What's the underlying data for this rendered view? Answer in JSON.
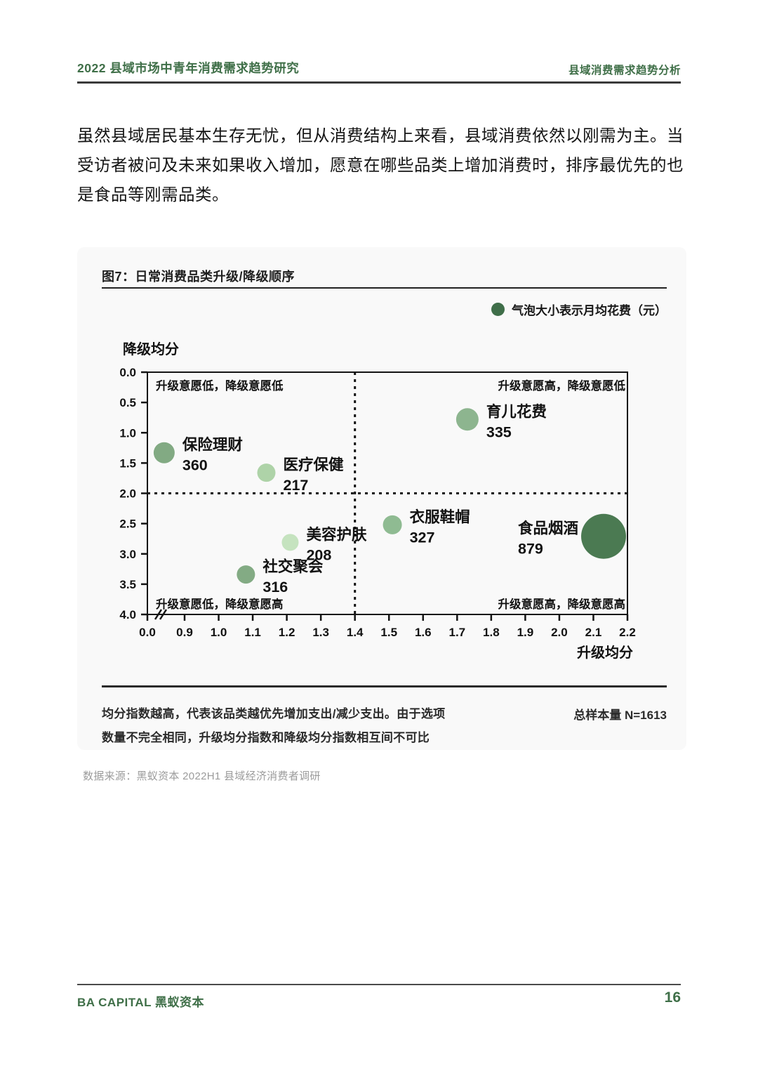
{
  "header": {
    "left": "2022 县域市场中青年消费需求趋势研究",
    "right": "县域消费需求趋势分析"
  },
  "paragraph": "虽然县域居民基本生存无忧，但从消费结构上来看，县域消费依然以刚需为主。当受访者被问及未来如果收入增加，愿意在哪些品类上增加消费时，排序最优先的也是食品等刚需品类。",
  "figure": {
    "title": "图7：日常消费品类升级/降级顺序",
    "legend": "气泡大小表示月均花费（元）",
    "note_lines": [
      "均分指数越高，代表该品类越优先增加支出/减少支出。由于选项",
      "数量不完全相同，升级均分指数和降级均分指数相互间不可比"
    ],
    "sample": "总样本量 N=1613"
  },
  "source": "数据来源：黑蚁资本 2022H1 县域经济消费者调研",
  "footer": {
    "brand": "BA CAPITAL 黑蚁资本",
    "page_number": "16"
  },
  "colors": {
    "accent_green": "#3f6f48",
    "legend_dot": "#3f6e49",
    "axis": "#141414",
    "card_bg": "#f9f9f9"
  },
  "chart_data": {
    "type": "bubble",
    "title": "图7：日常消费品类升级/降级顺序",
    "x_label": "升级均分",
    "y_label": "降级均分",
    "x_ticks": [
      "0.0",
      "0.9",
      "1.0",
      "1.1",
      "1.2",
      "1.3",
      "1.4",
      "1.5",
      "1.6",
      "1.7",
      "1.8",
      "1.9",
      "2.0",
      "2.1",
      "2.2"
    ],
    "y_ticks": [
      "0.0",
      "0.5",
      "1.0",
      "1.5",
      "2.0",
      "2.5",
      "3.0",
      "3.5",
      "4.0"
    ],
    "xlim": [
      0.9,
      2.2
    ],
    "ylim": [
      0,
      4
    ],
    "y_axis_inverted": true,
    "x_axis_break_after": "0.0",
    "grid": false,
    "reference_lines": {
      "x": 1.4,
      "y": 2.0
    },
    "quadrant_labels": {
      "top_left": "升级意愿低，降级意愿低",
      "top_right": "升级意愿高，降级意愿低",
      "bottom_left": "升级意愿低，降级意愿高",
      "bottom_right": "升级意愿高，降级意愿高"
    },
    "size_legend": "气泡大小表示月均花费（元）",
    "points": [
      {
        "label": "保险理财",
        "monthly_spend": 360,
        "upgrade_score": 0.84,
        "downgrade_score": 1.33,
        "radius_px": 15,
        "color": "#82aa83",
        "label_side": "right"
      },
      {
        "label": "医疗保健",
        "monthly_spend": 217,
        "upgrade_score": 1.14,
        "downgrade_score": 1.66,
        "radius_px": 13,
        "color": "#aed3a8",
        "label_side": "right"
      },
      {
        "label": "育儿花费",
        "monthly_spend": 335,
        "upgrade_score": 1.73,
        "downgrade_score": 0.78,
        "radius_px": 16,
        "color": "#8db58f",
        "label_side": "right"
      },
      {
        "label": "衣服鞋帽",
        "monthly_spend": 327,
        "upgrade_score": 1.51,
        "downgrade_score": 2.52,
        "radius_px": 13.5,
        "color": "#8fbb92",
        "label_side": "right"
      },
      {
        "label": "美容护肤",
        "monthly_spend": 208,
        "upgrade_score": 1.21,
        "downgrade_score": 2.81,
        "radius_px": 12,
        "color": "#c5e3bf",
        "label_side": "right"
      },
      {
        "label": "社交聚会",
        "monthly_spend": 316,
        "upgrade_score": 1.08,
        "downgrade_score": 3.34,
        "radius_px": 13,
        "color": "#83ab84",
        "label_side": "right"
      },
      {
        "label": "食品烟酒",
        "monthly_spend": 879,
        "upgrade_score": 2.13,
        "downgrade_score": 2.71,
        "radius_px": 32,
        "color": "#4b7a52",
        "label_side": "left"
      }
    ]
  }
}
